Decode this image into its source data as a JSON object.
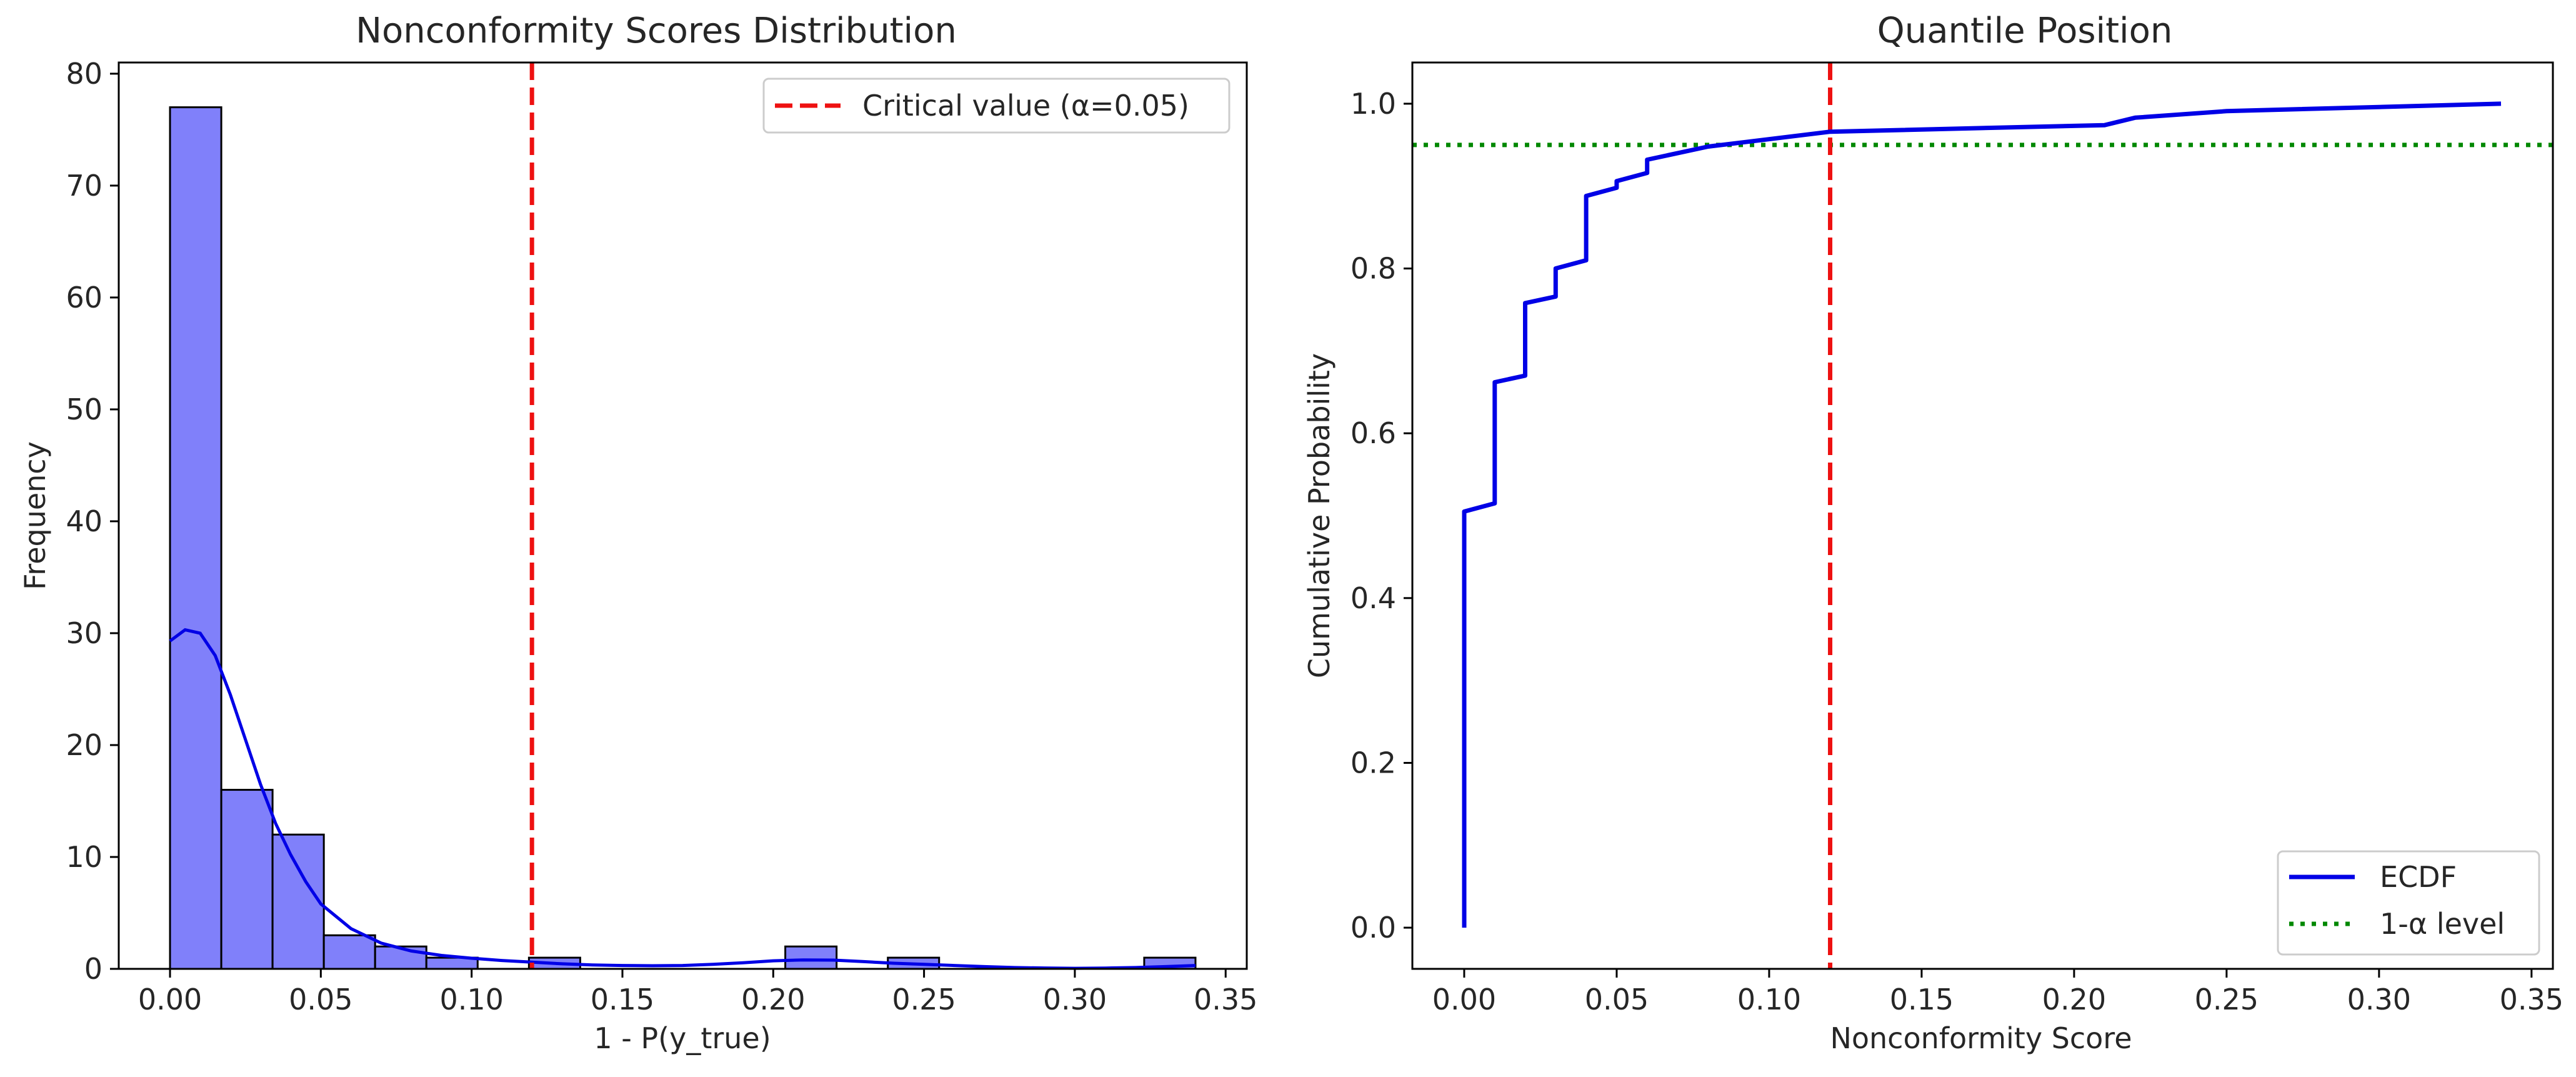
{
  "colors": {
    "hist_fill": "#8080fa",
    "hist_edge": "#000000",
    "kde": "#0000e6",
    "critical": "#ee1111",
    "ecdf": "#0000e6",
    "level": "#008800"
  },
  "chart_data": [
    {
      "type": "bar",
      "title": "Nonconformity Scores Distribution",
      "xlabel": "1 - P(y_true)",
      "ylabel": "Frequency",
      "xlim": [
        -0.017,
        0.357
      ],
      "ylim": [
        0,
        81
      ],
      "xticks": [
        "0.00",
        "0.05",
        "0.10",
        "0.15",
        "0.20",
        "0.25",
        "0.30",
        "0.35"
      ],
      "yticks": [
        "0",
        "10",
        "20",
        "30",
        "40",
        "50",
        "60",
        "70",
        "80"
      ],
      "bin_width": 0.017,
      "bins": [
        {
          "start": 0.0,
          "count": 77
        },
        {
          "start": 0.017,
          "count": 16
        },
        {
          "start": 0.034,
          "count": 12
        },
        {
          "start": 0.051,
          "count": 3
        },
        {
          "start": 0.068,
          "count": 2
        },
        {
          "start": 0.085,
          "count": 1
        },
        {
          "start": 0.102,
          "count": 0
        },
        {
          "start": 0.119,
          "count": 1
        },
        {
          "start": 0.136,
          "count": 0
        },
        {
          "start": 0.153,
          "count": 0
        },
        {
          "start": 0.17,
          "count": 0
        },
        {
          "start": 0.187,
          "count": 0
        },
        {
          "start": 0.204,
          "count": 2
        },
        {
          "start": 0.221,
          "count": 0
        },
        {
          "start": 0.238,
          "count": 1
        },
        {
          "start": 0.255,
          "count": 0
        },
        {
          "start": 0.272,
          "count": 0
        },
        {
          "start": 0.289,
          "count": 0
        },
        {
          "start": 0.306,
          "count": 0
        },
        {
          "start": 0.323,
          "count": 1
        }
      ],
      "kde": {
        "x": [
          0.0,
          0.005,
          0.01,
          0.015,
          0.02,
          0.025,
          0.03,
          0.035,
          0.04,
          0.045,
          0.05,
          0.06,
          0.07,
          0.08,
          0.09,
          0.1,
          0.11,
          0.12,
          0.13,
          0.14,
          0.15,
          0.16,
          0.17,
          0.18,
          0.19,
          0.2,
          0.21,
          0.22,
          0.23,
          0.24,
          0.25,
          0.26,
          0.27,
          0.28,
          0.29,
          0.3,
          0.31,
          0.32,
          0.33,
          0.34
        ],
        "y": [
          29.3,
          30.3,
          30.0,
          28.0,
          24.5,
          20.5,
          16.5,
          13.0,
          10.2,
          7.8,
          5.8,
          3.6,
          2.3,
          1.6,
          1.2,
          0.95,
          0.75,
          0.6,
          0.45,
          0.35,
          0.3,
          0.28,
          0.3,
          0.4,
          0.55,
          0.72,
          0.8,
          0.78,
          0.65,
          0.5,
          0.4,
          0.3,
          0.2,
          0.12,
          0.08,
          0.05,
          0.07,
          0.12,
          0.2,
          0.3
        ]
      },
      "critical_value": {
        "x": 0.12,
        "label": "Critical value (α=0.05)"
      },
      "legend": {
        "placement": "upper right"
      }
    },
    {
      "type": "line",
      "title": "Quantile Position",
      "xlabel": "Nonconformity Score",
      "ylabel": "Cumulative Probability",
      "xlim": [
        -0.017,
        0.357
      ],
      "ylim": [
        -0.05,
        1.05
      ],
      "xticks": [
        "0.00",
        "0.05",
        "0.10",
        "0.15",
        "0.20",
        "0.25",
        "0.30",
        "0.35"
      ],
      "yticks": [
        "0.0",
        "0.2",
        "0.4",
        "0.6",
        "0.8",
        "1.0"
      ],
      "series": [
        {
          "name": "ECDF",
          "x": [
            0.0,
            0.0,
            0.01,
            0.01,
            0.02,
            0.02,
            0.03,
            0.03,
            0.04,
            0.04,
            0.05,
            0.05,
            0.06,
            0.06,
            0.08,
            0.12,
            0.21,
            0.22,
            0.25,
            0.34
          ],
          "y": [
            0.0,
            0.505,
            0.515,
            0.662,
            0.67,
            0.758,
            0.766,
            0.8,
            0.81,
            0.888,
            0.898,
            0.906,
            0.916,
            0.932,
            0.948,
            0.966,
            0.974,
            0.983,
            0.991,
            1.0
          ]
        }
      ],
      "reference_lines": [
        {
          "name": "1-α level",
          "orientation": "horizontal",
          "y": 0.95
        },
        {
          "orientation": "vertical",
          "x": 0.12
        }
      ],
      "legend": {
        "placement": "lower right"
      }
    }
  ]
}
